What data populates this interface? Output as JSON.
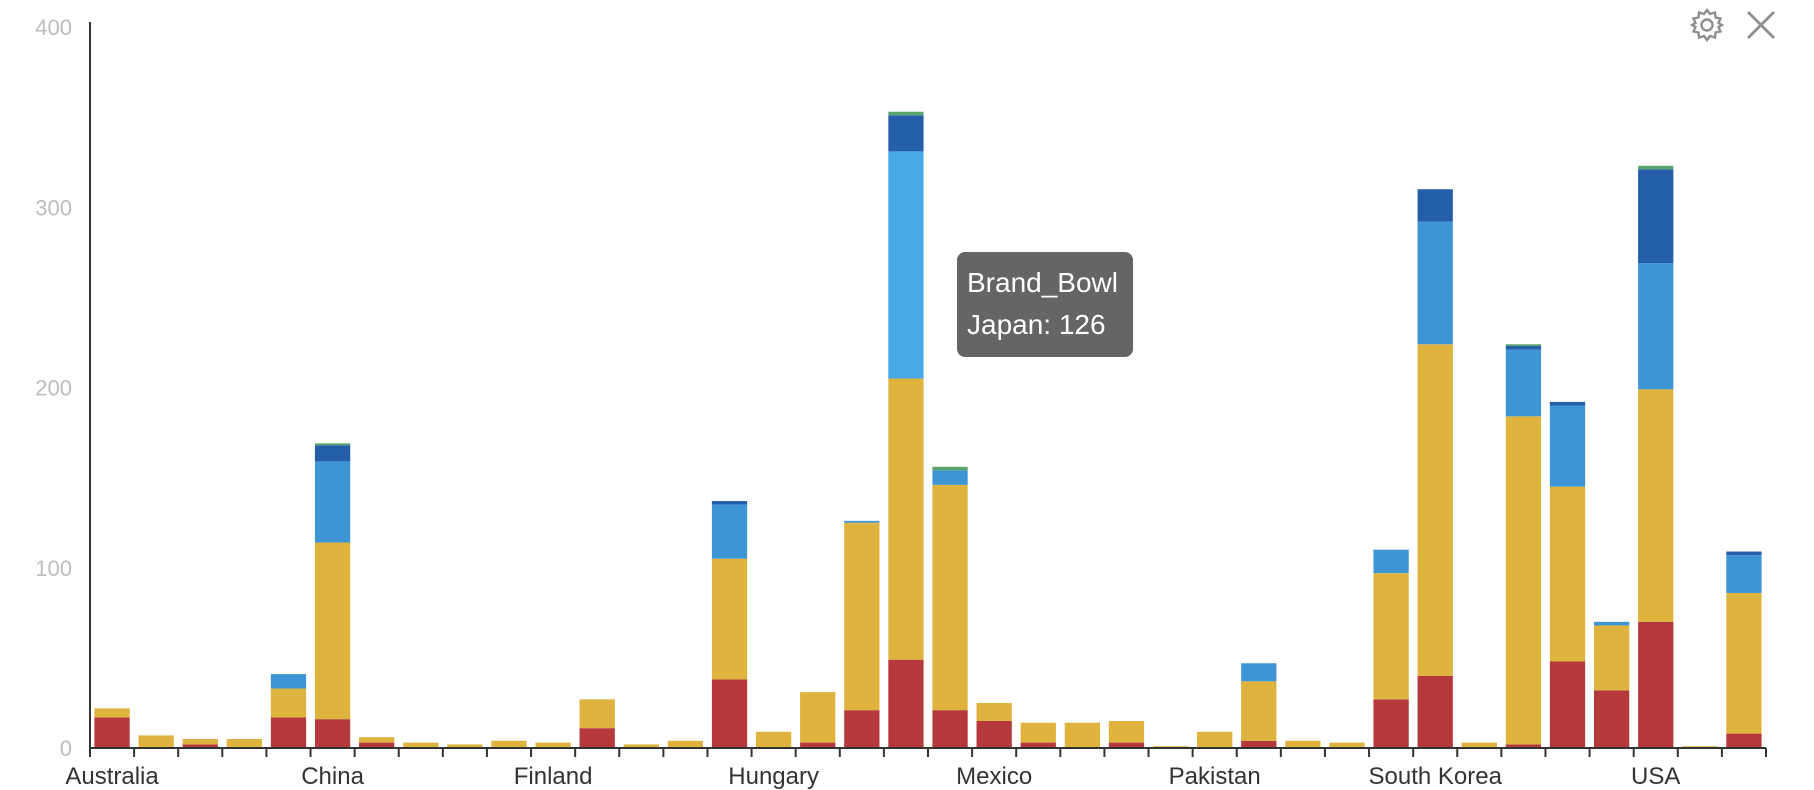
{
  "toolbar": {
    "settings_icon": "gear-icon",
    "close_icon": "close-icon"
  },
  "tooltip": {
    "series": "Brand_Bowl",
    "line": "Japan: 126"
  },
  "colors": [
    "#b5393b",
    "#deb43e",
    "#3e95d5",
    "#47a9e7",
    "#245ea8",
    "#5aa56b"
  ],
  "chart_data": {
    "type": "bar",
    "stacked": true,
    "grid": false,
    "ylim": [
      0,
      400
    ],
    "yticks": [
      0,
      100,
      200,
      300,
      400
    ],
    "category_labels": [
      "Australia",
      "China",
      "Finland",
      "Hungary",
      "Mexico",
      "Pakistan",
      "South Korea",
      "USA"
    ],
    "label_positions": [
      0,
      5,
      10,
      15,
      20,
      25,
      30,
      35
    ],
    "stacks": [
      [
        17,
        5,
        0,
        0,
        0,
        0
      ],
      [
        0,
        7,
        0,
        0,
        0,
        0
      ],
      [
        2,
        3,
        0,
        0,
        0,
        0
      ],
      [
        0,
        5,
        0,
        0,
        0,
        0
      ],
      [
        17,
        16,
        8,
        0,
        0,
        0
      ],
      [
        16,
        98,
        45,
        0,
        9,
        1
      ],
      [
        3,
        3,
        0,
        0,
        0,
        0
      ],
      [
        0,
        3,
        0,
        0,
        0,
        0
      ],
      [
        0,
        2,
        0,
        0,
        0,
        0
      ],
      [
        0,
        4,
        0,
        0,
        0,
        0
      ],
      [
        0,
        3,
        0,
        0,
        0,
        0
      ],
      [
        11,
        16,
        0,
        0,
        0,
        0
      ],
      [
        0,
        2,
        0,
        0,
        0,
        0
      ],
      [
        0,
        4,
        0,
        0,
        0,
        0
      ],
      [
        38,
        67,
        30,
        0,
        2,
        0
      ],
      [
        0,
        9,
        0,
        0,
        0,
        0
      ],
      [
        3,
        28,
        0,
        0,
        0,
        0
      ],
      [
        21,
        104,
        1,
        0,
        0,
        0
      ],
      [
        49,
        156,
        0,
        126,
        20,
        2
      ],
      [
        21,
        125,
        8,
        0,
        0,
        2
      ],
      [
        15,
        10,
        0,
        0,
        0,
        0
      ],
      [
        3,
        11,
        0,
        0,
        0,
        0
      ],
      [
        0,
        14,
        0,
        0,
        0,
        0
      ],
      [
        3,
        12,
        0,
        0,
        0,
        0
      ],
      [
        0,
        1,
        0,
        0,
        0,
        0
      ],
      [
        0,
        9,
        0,
        0,
        0,
        0
      ],
      [
        4,
        33,
        10,
        0,
        0,
        0
      ],
      [
        0,
        4,
        0,
        0,
        0,
        0
      ],
      [
        0,
        3,
        0,
        0,
        0,
        0
      ],
      [
        27,
        70,
        13,
        0,
        0,
        0
      ],
      [
        40,
        184,
        68,
        0,
        18,
        0
      ],
      [
        0,
        3,
        0,
        0,
        0,
        0
      ],
      [
        2,
        182,
        37,
        0,
        2,
        1
      ],
      [
        48,
        97,
        45,
        0,
        2,
        0
      ],
      [
        32,
        36,
        2,
        0,
        0,
        0
      ],
      [
        70,
        129,
        70,
        0,
        52,
        2
      ],
      [
        0,
        1,
        0,
        0,
        0,
        0
      ],
      [
        8,
        78,
        21,
        0,
        2,
        0
      ]
    ]
  }
}
